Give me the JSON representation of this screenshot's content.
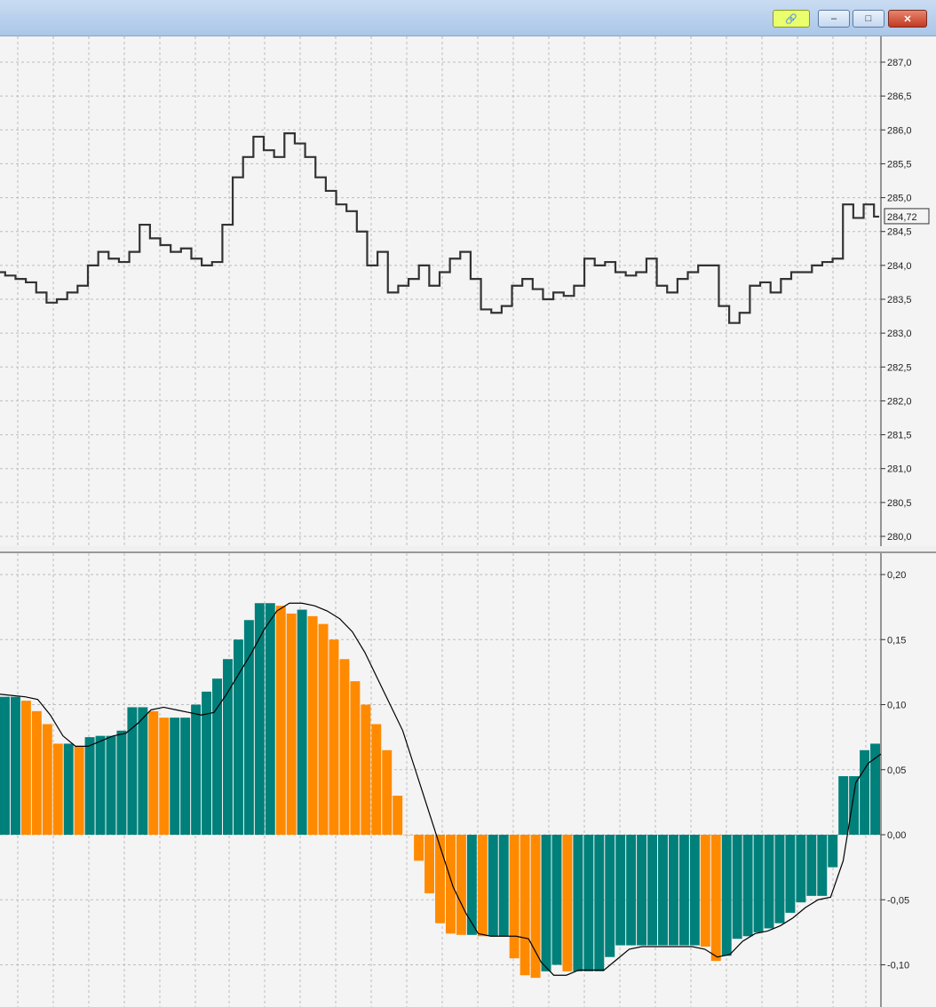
{
  "window": {
    "buttons": {
      "link_icon": "link-icon",
      "minimize_icon": "minimize-icon",
      "maximize_icon": "maximize-icon",
      "close_icon": "close-icon"
    }
  },
  "colors": {
    "background": "#f4f4f4",
    "price_line": "#333333",
    "grid": "#bdbdbd",
    "positive_bar": "#00807a",
    "negative_bar": "#ff8a00",
    "signal_line": "#000000",
    "link_button": "#eaff6e"
  },
  "price_panel": {
    "current_price_label": "284,72",
    "y_ticks": [
      "287,0",
      "286,5",
      "286,0",
      "285,5",
      "285,0",
      "284,5",
      "284,0",
      "283,5",
      "283,0",
      "282,5",
      "282,0",
      "281,5",
      "281,0",
      "280,5",
      "280,0"
    ]
  },
  "indicator_panel": {
    "y_ticks": [
      "0,20",
      "0,15",
      "0,10",
      "0,05",
      "0,00",
      "-0,05",
      "-0,10"
    ]
  },
  "chart_data": [
    {
      "type": "line",
      "panel": "price",
      "ylim": [
        280.0,
        287.0
      ],
      "current_price": 284.72,
      "series": [
        {
          "values": [
            283.9,
            283.85,
            283.8,
            283.75,
            283.6,
            283.45,
            283.5,
            283.6,
            283.7,
            284.0,
            284.2,
            284.1,
            284.05,
            284.2,
            284.6,
            284.4,
            284.3,
            284.2,
            284.25,
            284.1,
            284.0,
            284.05,
            284.6,
            285.3,
            285.6,
            285.9,
            285.7,
            285.6,
            285.95,
            285.8,
            285.6,
            285.3,
            285.1,
            284.9,
            284.8,
            284.5,
            284.0,
            284.2,
            283.6,
            283.7,
            283.8,
            284.0,
            283.7,
            283.9,
            284.1,
            284.2,
            283.8,
            283.35,
            283.3,
            283.4,
            283.7,
            283.8,
            283.65,
            283.5,
            283.6,
            283.55,
            283.7,
            284.1,
            284.0,
            284.05,
            283.9,
            283.85,
            283.9,
            284.1,
            283.7,
            283.6,
            283.8,
            283.9,
            284.0,
            284.0,
            283.4,
            283.15,
            283.3,
            283.7,
            283.75,
            283.6,
            283.8,
            283.9,
            283.9,
            284.0,
            284.05,
            284.1,
            284.9,
            284.7,
            284.9,
            284.72
          ]
        }
      ]
    },
    {
      "type": "bar",
      "panel": "indicator",
      "ylim": [
        -0.11,
        0.2
      ],
      "series": [
        {
          "values": [
            0.106,
            0.106,
            0.103,
            0.095,
            0.085,
            0.07,
            0.07,
            0.068,
            0.075,
            0.076,
            0.076,
            0.08,
            0.098,
            0.098,
            0.095,
            0.09,
            0.09,
            0.09,
            0.1,
            0.11,
            0.12,
            0.135,
            0.15,
            0.165,
            0.178,
            0.178,
            0.176,
            0.17,
            0.173,
            0.168,
            0.162,
            0.15,
            0.135,
            0.118,
            0.1,
            0.085,
            0.065,
            0.03,
            0.0,
            -0.02,
            -0.045,
            -0.068,
            -0.076,
            -0.077,
            -0.077,
            -0.078,
            -0.078,
            -0.078,
            -0.095,
            -0.108,
            -0.11,
            -0.105,
            -0.1,
            -0.105,
            -0.105,
            -0.105,
            -0.105,
            -0.094,
            -0.085,
            -0.085,
            -0.085,
            -0.085,
            -0.085,
            -0.085,
            -0.085,
            -0.085,
            -0.086,
            -0.097,
            -0.093,
            -0.08,
            -0.078,
            -0.075,
            -0.072,
            -0.068,
            -0.06,
            -0.052,
            -0.047,
            -0.047,
            -0.025,
            0.045,
            0.045,
            0.065,
            0.07
          ]
        },
        {
          "values": [
            0.108,
            0.107,
            0.106,
            0.104,
            0.092,
            0.076,
            0.068,
            0.068,
            0.072,
            0.076,
            0.078,
            0.086,
            0.096,
            0.098,
            0.096,
            0.094,
            0.092,
            0.094,
            0.108,
            0.124,
            0.14,
            0.158,
            0.172,
            0.178,
            0.178,
            0.176,
            0.172,
            0.166,
            0.156,
            0.14,
            0.12,
            0.1,
            0.08,
            0.05,
            0.02,
            -0.01,
            -0.04,
            -0.06,
            -0.076,
            -0.078,
            -0.078,
            -0.078,
            -0.08,
            -0.098,
            -0.108,
            -0.108,
            -0.104,
            -0.104,
            -0.104,
            -0.096,
            -0.088,
            -0.086,
            -0.086,
            -0.086,
            -0.086,
            -0.086,
            -0.088,
            -0.094,
            -0.092,
            -0.082,
            -0.076,
            -0.074,
            -0.07,
            -0.064,
            -0.056,
            -0.05,
            -0.048,
            -0.02,
            0.04,
            0.055,
            0.062
          ]
        }
      ]
    }
  ]
}
